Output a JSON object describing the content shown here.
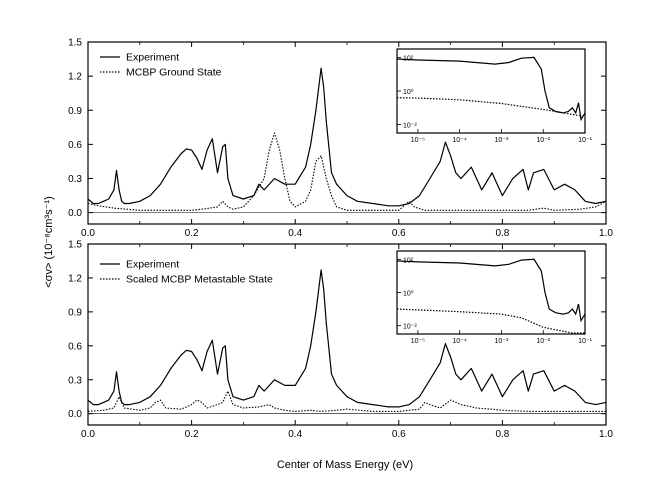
{
  "figure": {
    "ylabel": "<σv> (10⁻⁸cm³s⁻¹)",
    "xlabel": "Center of Mass Energy (eV)"
  },
  "chart_data": [
    {
      "type": "line",
      "panel": "top",
      "xlim": [
        0.0,
        1.0
      ],
      "ylim": [
        -0.1,
        1.5
      ],
      "xticks": [
        "0.0",
        "0.2",
        "0.4",
        "0.6",
        "0.8",
        "1.0"
      ],
      "yticks": [
        "0.0",
        "0.3",
        "0.6",
        "0.9",
        "1.2",
        "1.5"
      ],
      "legend_position": "top-left",
      "series": [
        {
          "name": "Experiment",
          "style": "solid",
          "x": [
            0.0,
            0.01,
            0.02,
            0.03,
            0.04,
            0.05,
            0.055,
            0.06,
            0.065,
            0.07,
            0.08,
            0.1,
            0.12,
            0.14,
            0.16,
            0.18,
            0.19,
            0.2,
            0.21,
            0.22,
            0.23,
            0.24,
            0.25,
            0.26,
            0.265,
            0.27,
            0.28,
            0.3,
            0.32,
            0.33,
            0.34,
            0.36,
            0.38,
            0.4,
            0.42,
            0.43,
            0.44,
            0.45,
            0.455,
            0.46,
            0.47,
            0.48,
            0.5,
            0.52,
            0.55,
            0.58,
            0.6,
            0.62,
            0.64,
            0.66,
            0.68,
            0.69,
            0.7,
            0.71,
            0.72,
            0.74,
            0.76,
            0.78,
            0.79,
            0.8,
            0.82,
            0.84,
            0.85,
            0.86,
            0.88,
            0.9,
            0.92,
            0.94,
            0.96,
            0.98,
            1.0
          ],
          "y": [
            0.12,
            0.08,
            0.08,
            0.1,
            0.12,
            0.2,
            0.37,
            0.2,
            0.1,
            0.08,
            0.08,
            0.1,
            0.15,
            0.25,
            0.4,
            0.52,
            0.56,
            0.55,
            0.48,
            0.38,
            0.55,
            0.65,
            0.35,
            0.58,
            0.6,
            0.3,
            0.15,
            0.12,
            0.15,
            0.25,
            0.2,
            0.3,
            0.25,
            0.25,
            0.4,
            0.6,
            0.9,
            1.27,
            1.1,
            0.8,
            0.35,
            0.25,
            0.15,
            0.1,
            0.08,
            0.06,
            0.06,
            0.08,
            0.15,
            0.3,
            0.45,
            0.62,
            0.5,
            0.35,
            0.3,
            0.4,
            0.2,
            0.35,
            0.25,
            0.15,
            0.3,
            0.38,
            0.2,
            0.35,
            0.38,
            0.2,
            0.25,
            0.2,
            0.1,
            0.08,
            0.1
          ]
        },
        {
          "name": "MCBP Ground State",
          "style": "dotted",
          "x": [
            0.0,
            0.02,
            0.05,
            0.1,
            0.15,
            0.2,
            0.22,
            0.25,
            0.26,
            0.27,
            0.28,
            0.3,
            0.32,
            0.34,
            0.35,
            0.36,
            0.37,
            0.38,
            0.39,
            0.4,
            0.42,
            0.43,
            0.44,
            0.45,
            0.46,
            0.47,
            0.48,
            0.5,
            0.55,
            0.6,
            0.61,
            0.62,
            0.63,
            0.65,
            0.7,
            0.75,
            0.8,
            0.85,
            0.88,
            0.9,
            0.95,
            0.98,
            1.0
          ],
          "y": [
            0.08,
            0.06,
            0.04,
            0.02,
            0.02,
            0.02,
            0.03,
            0.05,
            0.1,
            0.05,
            0.03,
            0.05,
            0.15,
            0.3,
            0.55,
            0.7,
            0.55,
            0.3,
            0.1,
            0.05,
            0.1,
            0.2,
            0.45,
            0.5,
            0.3,
            0.15,
            0.05,
            0.02,
            0.02,
            0.02,
            0.06,
            0.1,
            0.05,
            0.02,
            0.02,
            0.02,
            0.02,
            0.02,
            0.04,
            0.02,
            0.03,
            0.05,
            0.1
          ]
        }
      ],
      "inset": {
        "xscale": "log",
        "yscale": "log",
        "xticks": [
          "10⁻⁵",
          "10⁻⁴",
          "10⁻³",
          "10⁻²",
          "10⁻¹"
        ],
        "yticks": [
          "10²",
          "10⁰",
          "10⁻²"
        ],
        "series": [
          {
            "name": "Experiment",
            "style": "solid",
            "x": [
              3e-06,
              1e-05,
              0.0001,
              0.0007,
              0.0015,
              0.003,
              0.006,
              0.009,
              0.011,
              0.014,
              0.02,
              0.03,
              0.04,
              0.05,
              0.06,
              0.07,
              0.08,
              0.1
            ],
            "y": [
              80,
              70,
              60,
              40,
              50,
              90,
              100,
              20,
              1,
              0.1,
              0.06,
              0.05,
              0.06,
              0.1,
              0.05,
              0.2,
              0.02,
              0.05
            ]
          },
          {
            "name": "MCBP Ground State",
            "style": "dotted",
            "x": [
              3e-06,
              1e-05,
              0.0001,
              0.001,
              0.01,
              0.1
            ],
            "y": [
              0.4,
              0.38,
              0.3,
              0.18,
              0.08,
              0.03
            ]
          }
        ]
      }
    },
    {
      "type": "line",
      "panel": "bottom",
      "xlim": [
        0.0,
        1.0
      ],
      "ylim": [
        -0.1,
        1.5
      ],
      "xticks": [
        "0.0",
        "0.2",
        "0.4",
        "0.6",
        "0.8",
        "1.0"
      ],
      "yticks": [
        "0.0",
        "0.3",
        "0.6",
        "0.9",
        "1.2",
        "1.5"
      ],
      "legend_position": "top-left",
      "series": [
        {
          "name": "Experiment",
          "style": "solid",
          "x": [
            0.0,
            0.01,
            0.02,
            0.03,
            0.04,
            0.05,
            0.055,
            0.06,
            0.065,
            0.07,
            0.08,
            0.1,
            0.12,
            0.14,
            0.16,
            0.18,
            0.19,
            0.2,
            0.21,
            0.22,
            0.23,
            0.24,
            0.25,
            0.26,
            0.265,
            0.27,
            0.28,
            0.3,
            0.32,
            0.33,
            0.34,
            0.36,
            0.38,
            0.4,
            0.42,
            0.43,
            0.44,
            0.45,
            0.455,
            0.46,
            0.47,
            0.48,
            0.5,
            0.52,
            0.55,
            0.58,
            0.6,
            0.62,
            0.64,
            0.66,
            0.68,
            0.69,
            0.7,
            0.71,
            0.72,
            0.74,
            0.76,
            0.78,
            0.79,
            0.8,
            0.82,
            0.84,
            0.85,
            0.86,
            0.88,
            0.9,
            0.92,
            0.94,
            0.96,
            0.98,
            1.0
          ],
          "y": [
            0.12,
            0.08,
            0.08,
            0.1,
            0.12,
            0.2,
            0.37,
            0.2,
            0.1,
            0.08,
            0.08,
            0.1,
            0.15,
            0.25,
            0.4,
            0.52,
            0.56,
            0.55,
            0.48,
            0.38,
            0.55,
            0.65,
            0.35,
            0.58,
            0.6,
            0.3,
            0.15,
            0.12,
            0.15,
            0.25,
            0.2,
            0.3,
            0.25,
            0.25,
            0.4,
            0.6,
            0.9,
            1.27,
            1.1,
            0.8,
            0.35,
            0.25,
            0.15,
            0.1,
            0.08,
            0.06,
            0.06,
            0.08,
            0.15,
            0.3,
            0.45,
            0.62,
            0.5,
            0.35,
            0.3,
            0.4,
            0.2,
            0.35,
            0.25,
            0.15,
            0.3,
            0.38,
            0.2,
            0.35,
            0.38,
            0.2,
            0.25,
            0.2,
            0.1,
            0.08,
            0.1
          ]
        },
        {
          "name": "Scaled  MCBP Metastable State",
          "style": "dotted",
          "x": [
            0.0,
            0.03,
            0.05,
            0.06,
            0.07,
            0.1,
            0.12,
            0.13,
            0.14,
            0.15,
            0.18,
            0.2,
            0.21,
            0.22,
            0.23,
            0.25,
            0.26,
            0.27,
            0.28,
            0.3,
            0.33,
            0.35,
            0.36,
            0.38,
            0.4,
            0.43,
            0.45,
            0.48,
            0.5,
            0.55,
            0.6,
            0.64,
            0.65,
            0.66,
            0.68,
            0.7,
            0.72,
            0.75,
            0.78,
            0.8,
            0.85,
            0.9,
            0.95,
            1.0
          ],
          "y": [
            0.02,
            0.03,
            0.05,
            0.15,
            0.05,
            0.03,
            0.05,
            0.1,
            0.12,
            0.05,
            0.04,
            0.08,
            0.12,
            0.1,
            0.05,
            0.08,
            0.1,
            0.2,
            0.08,
            0.05,
            0.06,
            0.08,
            0.05,
            0.03,
            0.02,
            0.03,
            0.02,
            0.03,
            0.04,
            0.02,
            0.02,
            0.04,
            0.1,
            0.08,
            0.05,
            0.12,
            0.08,
            0.05,
            0.04,
            0.03,
            0.02,
            0.02,
            0.02,
            0.02
          ]
        }
      ],
      "inset": {
        "xscale": "log",
        "yscale": "log",
        "xticks": [
          "10⁻⁵",
          "10⁻⁴",
          "10⁻³",
          "10⁻²",
          "10⁻¹"
        ],
        "yticks": [
          "10²",
          "10⁰",
          "10⁻²"
        ],
        "series": [
          {
            "name": "Experiment",
            "style": "solid",
            "x": [
              3e-06,
              1e-05,
              0.0001,
              0.0007,
              0.0015,
              0.003,
              0.006,
              0.009,
              0.011,
              0.014,
              0.02,
              0.03,
              0.04,
              0.05,
              0.06,
              0.07,
              0.08,
              0.1
            ],
            "y": [
              80,
              70,
              60,
              40,
              50,
              90,
              100,
              20,
              1,
              0.1,
              0.06,
              0.05,
              0.06,
              0.1,
              0.05,
              0.2,
              0.02,
              0.05
            ]
          },
          {
            "name": "Scaled  MCBP Metastable State",
            "style": "dotted",
            "x": [
              3e-06,
              1e-05,
              0.0001,
              0.001,
              0.003,
              0.01,
              0.05,
              0.1
            ],
            "y": [
              0.1,
              0.09,
              0.07,
              0.05,
              0.03,
              0.008,
              0.003,
              0.001
            ]
          }
        ]
      }
    }
  ]
}
